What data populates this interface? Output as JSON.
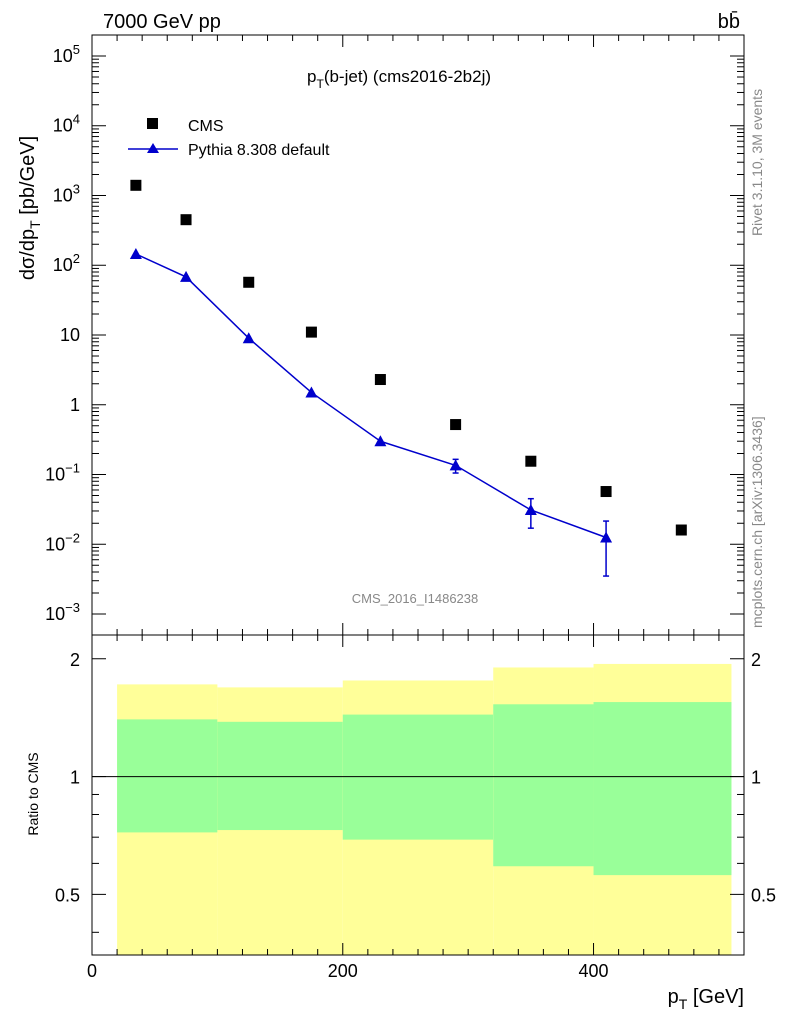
{
  "header": {
    "energy_label": "7000 GeV pp",
    "process_label": "bb̄",
    "title_main": "p",
    "title_sub": "T",
    "title_rest": "(b-jet) (cms2016-2b2j)",
    "watermark": "CMS_2016_I1486238",
    "side_top": "Rivet 3.1.10,  3M events",
    "side_bottom": "mcplots.cern.ch [arXiv:1306.3436]"
  },
  "axes": {
    "ylabel_main": "dσ/dp",
    "ylabel_sub": "T",
    "ylabel_unit": " [pb/GeV]",
    "ratio_ylabel": "Ratio to CMS",
    "xlabel_main": "p",
    "xlabel_sub": "T",
    "xlabel_unit": " [GeV]",
    "x_ticks": [
      "0",
      "200",
      "400"
    ],
    "y_ticks_main": [
      "10^-3",
      "10^-2",
      "10^-1",
      "1",
      "10",
      "10^2",
      "10^3",
      "10^4",
      "10^5"
    ],
    "y_ticks_ratio": [
      "0.5",
      "1",
      "2"
    ]
  },
  "legend": {
    "cms": "CMS",
    "pythia": "Pythia 8.308 default"
  },
  "colors": {
    "cms": "#000000",
    "pythia": "#0000cc",
    "band_inner": "#99ff99",
    "band_outer": "#ffff99"
  },
  "chart_data": {
    "type": "scatter",
    "xlabel": "p_T [GeV]",
    "ylabel": "dσ/dp_T [pb/GeV]",
    "xlim": [
      0,
      520
    ],
    "ylim": [
      0.0005,
      200000
    ],
    "yscale": "log",
    "series": [
      {
        "name": "CMS",
        "x": [
          35,
          75,
          125,
          175,
          230,
          290,
          350,
          410,
          470
        ],
        "y": [
          1400,
          450,
          57,
          11,
          2.3,
          0.52,
          0.155,
          0.057,
          0.016
        ]
      },
      {
        "name": "Pythia 8.308 default",
        "x": [
          35,
          75,
          125,
          175,
          230,
          290,
          350,
          410
        ],
        "y": [
          145,
          68,
          9,
          1.5,
          0.3,
          0.135,
          0.031,
          0.0125
        ],
        "yerr_low": [
          0,
          0,
          0,
          0,
          0,
          0.03,
          0.014,
          0.009
        ],
        "yerr_high": [
          0,
          0,
          0,
          0,
          0,
          0.03,
          0.014,
          0.009
        ]
      }
    ],
    "ratio": {
      "ylabel": "Ratio to CMS",
      "ylim": [
        0.35,
        2.3
      ],
      "yscale": "log",
      "bins": [
        [
          20,
          100
        ],
        [
          100,
          200
        ],
        [
          200,
          320
        ],
        [
          320,
          400
        ],
        [
          400,
          510
        ]
      ],
      "band_inner_low": [
        0.72,
        0.73,
        0.69,
        0.59,
        0.56
      ],
      "band_inner_high": [
        1.4,
        1.38,
        1.44,
        1.53,
        1.55
      ],
      "band_outer_low": [
        0.4,
        0.4,
        0.4,
        0.4,
        0.4
      ],
      "band_outer_high": [
        1.72,
        1.69,
        1.76,
        1.9,
        1.94
      ],
      "band_outer_low_true": [
        0.72,
        0.73,
        0.69,
        0.59,
        0.56
      ]
    }
  }
}
